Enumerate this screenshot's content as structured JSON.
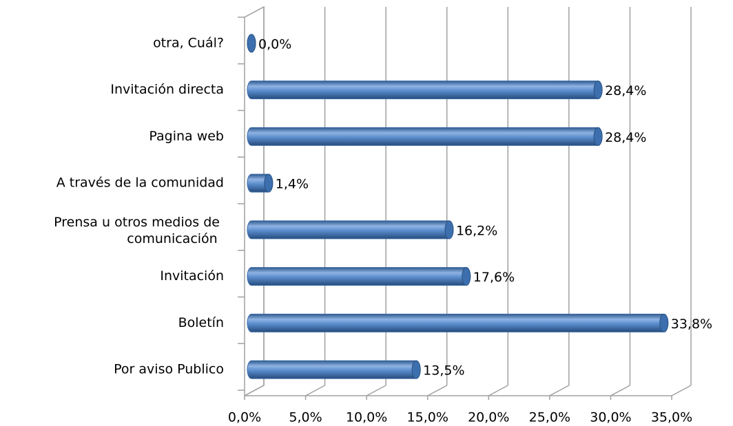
{
  "chart_data": {
    "type": "bar",
    "orientation": "horizontal",
    "categories": [
      "Por aviso Publico",
      "Boletín",
      "Invitación",
      "Prensa u otros medios de comunicación",
      "A través de la comunidad",
      "Pagina web",
      "Invitación directa",
      "otra, Cuál?"
    ],
    "values": [
      13.5,
      33.8,
      17.6,
      16.2,
      1.4,
      28.4,
      28.4,
      0.0
    ],
    "value_labels": [
      "13,5%",
      "33,8%",
      "17,6%",
      "16,2%",
      "1,4%",
      "28,4%",
      "28,4%",
      "0,0%"
    ],
    "color": "#4f81bd",
    "xlim": [
      0,
      35
    ],
    "xticks": [
      {
        "value": 0,
        "label": "0,0%"
      },
      {
        "value": 5,
        "label": "5,0%"
      },
      {
        "value": 10,
        "label": "10,0%"
      },
      {
        "value": 15,
        "label": "15,0%"
      },
      {
        "value": 20,
        "label": "20,0%"
      },
      {
        "value": 25,
        "label": "25,0%"
      },
      {
        "value": 30,
        "label": "30,0%"
      },
      {
        "value": 35,
        "label": "35,0%"
      }
    ],
    "grid": true
  }
}
